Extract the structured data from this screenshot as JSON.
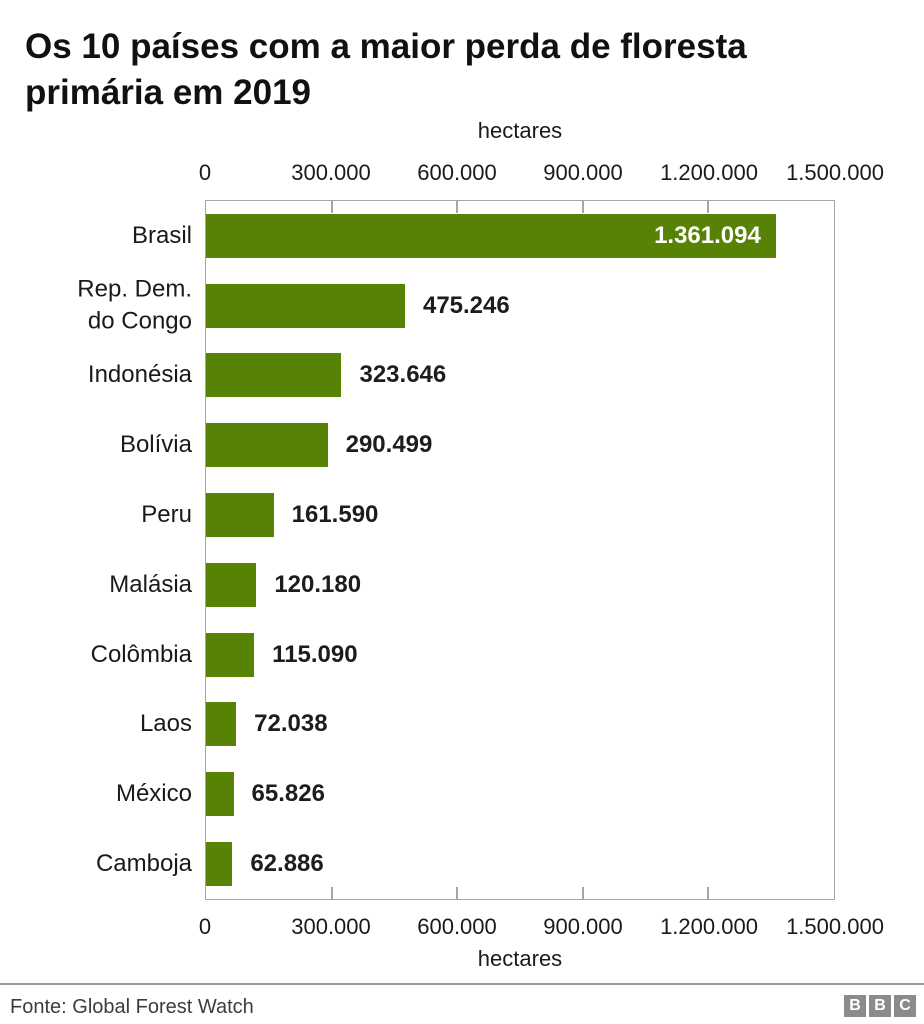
{
  "header": {
    "title": "Os 10 países com a maior perda de floresta primária em 2019"
  },
  "chart_data": {
    "type": "bar",
    "orientation": "horizontal",
    "unit_label": "hectares",
    "categories": [
      "Brasil",
      "Rep. Dem.\ndo Congo",
      "Indonésia",
      "Bolívia",
      "Peru",
      "Malásia",
      "Colômbia",
      "Laos",
      "México",
      "Camboja"
    ],
    "values": [
      1361094,
      475246,
      323646,
      290499,
      161590,
      120180,
      115090,
      72038,
      65826,
      62886
    ],
    "value_labels": [
      "1.361.094",
      "475.246",
      "323.646",
      "290.499",
      "161.590",
      "120.180",
      "115.090",
      "72.038",
      "65.826",
      "62.886"
    ],
    "xlim": [
      0,
      1500000
    ],
    "x_ticks": [
      0,
      300000,
      600000,
      900000,
      1200000,
      1500000
    ],
    "x_tick_labels": [
      "0",
      "300.000",
      "600.000",
      "900.000",
      "1.200.000",
      "1.500.000"
    ],
    "grid": false,
    "legend": false,
    "bar_color": "#588203",
    "value_label_color": "#1d1d1d",
    "value_label_inside_color": "#ffffff",
    "axis_border_color": "#a6a6a6"
  },
  "footer": {
    "source": "Fonte: Global Forest Watch",
    "logo_letters": [
      "B",
      "B",
      "C"
    ],
    "logo_color": "#8b8b8b"
  }
}
